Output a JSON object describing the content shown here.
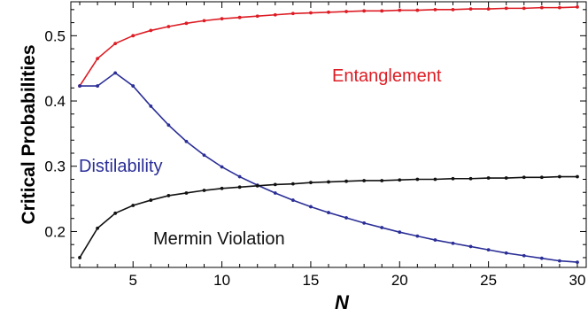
{
  "chart_data": {
    "type": "line",
    "xlabel": "N",
    "ylabel": "Critical Probabilities",
    "xlim": [
      1.5,
      30.5
    ],
    "ylim": [
      0.145,
      0.552
    ],
    "xticks": [
      5,
      10,
      15,
      20,
      25,
      30
    ],
    "yticks": [
      0.2,
      0.3,
      0.4,
      0.5
    ],
    "ytick_labels": [
      "0.2",
      "0.3",
      "0.4",
      "0.5"
    ],
    "grid": false,
    "legend": "none",
    "x": [
      2,
      3,
      4,
      5,
      6,
      7,
      8,
      9,
      10,
      11,
      12,
      13,
      14,
      15,
      16,
      17,
      18,
      19,
      20,
      21,
      22,
      23,
      24,
      25,
      26,
      27,
      28,
      29,
      30
    ],
    "series": [
      {
        "name": "Entanglement",
        "color": "#dd1c24",
        "values": [
          0.423,
          0.465,
          0.488,
          0.5,
          0.508,
          0.514,
          0.519,
          0.523,
          0.526,
          0.528,
          0.53,
          0.532,
          0.534,
          0.535,
          0.536,
          0.537,
          0.538,
          0.538,
          0.539,
          0.539,
          0.54,
          0.54,
          0.541,
          0.541,
          0.542,
          0.542,
          0.543,
          0.543,
          0.544
        ]
      },
      {
        "name": "Distilability",
        "color": "#2a2e96",
        "values": [
          0.423,
          0.423,
          0.443,
          0.423,
          0.392,
          0.363,
          0.338,
          0.317,
          0.299,
          0.284,
          0.271,
          0.259,
          0.248,
          0.238,
          0.229,
          0.221,
          0.213,
          0.206,
          0.199,
          0.193,
          0.187,
          0.182,
          0.177,
          0.172,
          0.167,
          0.163,
          0.159,
          0.155,
          0.153
        ]
      },
      {
        "name": "Mermin Violation",
        "color": "#111111",
        "values": [
          0.16,
          0.205,
          0.228,
          0.24,
          0.248,
          0.255,
          0.259,
          0.263,
          0.266,
          0.268,
          0.27,
          0.272,
          0.273,
          0.275,
          0.276,
          0.277,
          0.278,
          0.278,
          0.279,
          0.28,
          0.28,
          0.281,
          0.281,
          0.282,
          0.282,
          0.283,
          0.283,
          0.284,
          0.284
        ]
      }
    ]
  }
}
